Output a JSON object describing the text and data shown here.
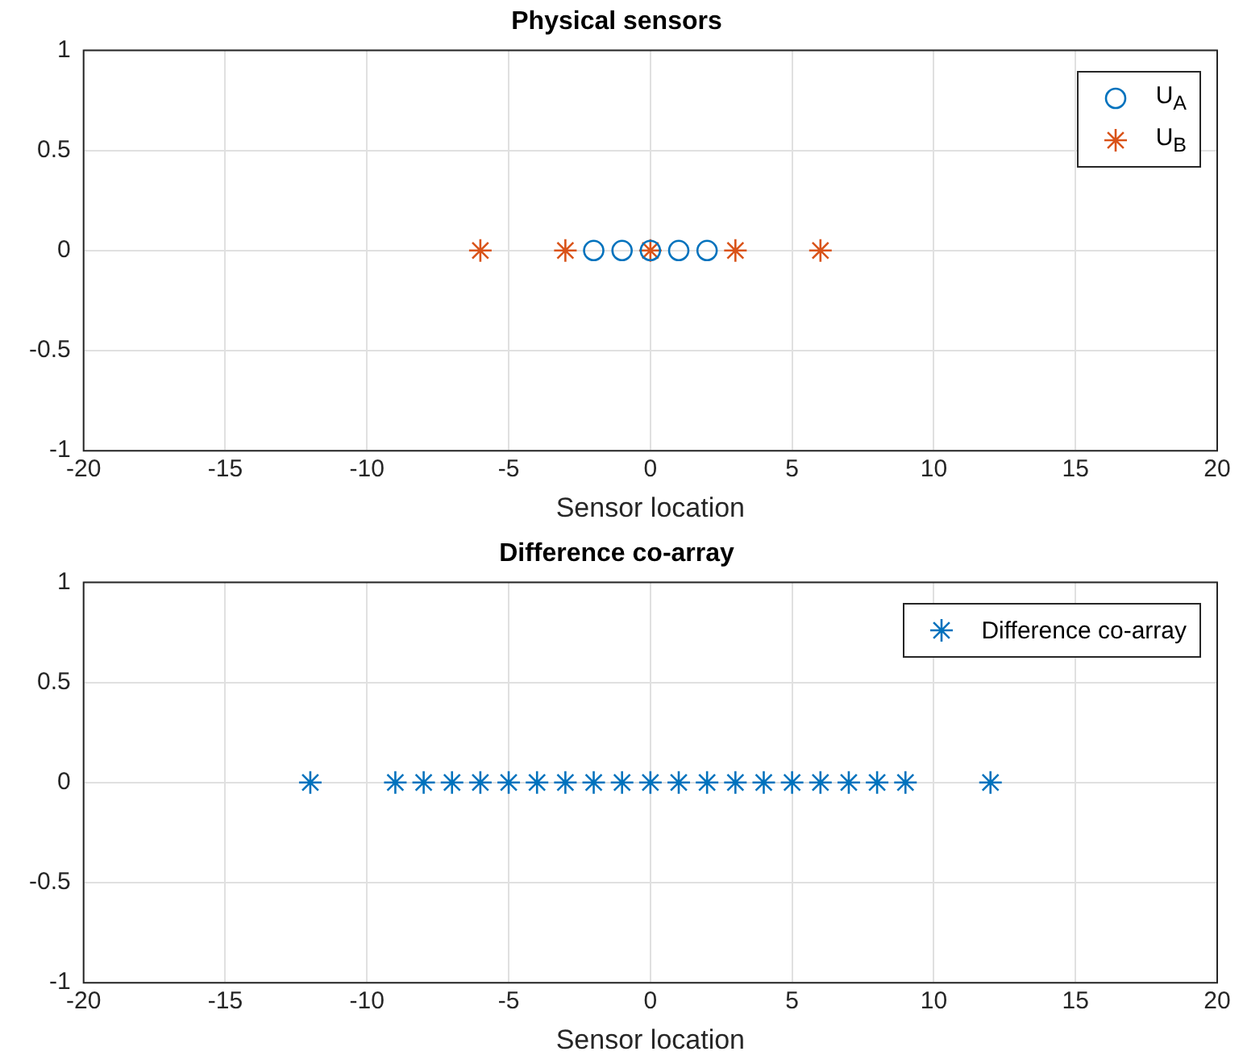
{
  "chart_data": [
    {
      "type": "scatter",
      "title": "Physical sensors",
      "xlabel": "Sensor location",
      "xlim": [
        -20,
        20
      ],
      "xticks": [
        -20,
        -15,
        -10,
        -5,
        0,
        5,
        10,
        15,
        20
      ],
      "ylim": [
        -1,
        1
      ],
      "yticks": [
        -1,
        -0.5,
        0,
        0.5,
        1
      ],
      "grid": true,
      "legend": "top right",
      "series": [
        {
          "name": "U$_{A}$",
          "color": "#0072bd",
          "marker": "circle",
          "x": [
            -2,
            -1,
            0,
            1,
            2
          ],
          "values": [
            0,
            0,
            0,
            0,
            0
          ]
        },
        {
          "name": "U$_{B}$",
          "color": "#d95319",
          "marker": "cross",
          "x": [
            -6,
            -3,
            0,
            3,
            6
          ],
          "values": [
            0,
            0,
            0,
            0,
            0
          ]
        }
      ]
    },
    {
      "type": "scatter",
      "title": "Difference co-array",
      "xlabel": "Sensor location",
      "xlim": [
        -20,
        20
      ],
      "xticks": [
        -20,
        -15,
        -10,
        -5,
        0,
        5,
        10,
        15,
        20
      ],
      "ylim": [
        -1,
        1
      ],
      "yticks": [
        -1,
        -0.5,
        0,
        0.5,
        1
      ],
      "grid": true,
      "legend": "top right",
      "series": [
        {
          "name": "Difference co-array",
          "color": "#0072bd",
          "marker": "cross",
          "x": [
            -12,
            -9,
            -8,
            -7,
            -6,
            -5,
            -4,
            -3,
            -2,
            -1,
            0,
            1,
            2,
            3,
            4,
            5,
            6,
            7,
            8,
            9,
            12
          ],
          "values": [
            0,
            0,
            0,
            0,
            0,
            0,
            0,
            0,
            0,
            0,
            0,
            0,
            0,
            0,
            0,
            0,
            0,
            0,
            0,
            0,
            0
          ]
        }
      ]
    }
  ]
}
